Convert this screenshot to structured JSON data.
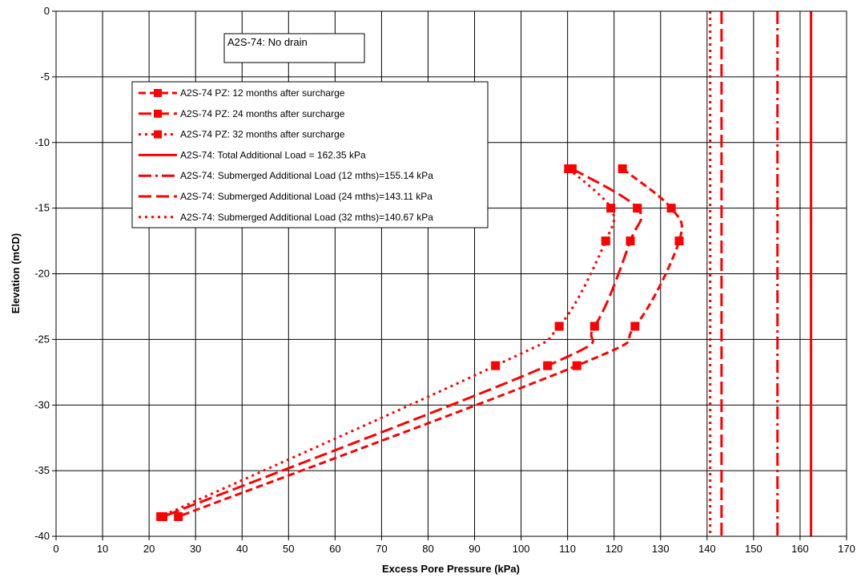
{
  "chart_data": {
    "type": "line",
    "title": "",
    "annotation": "A2S-74: No drain",
    "xlabel": "Excess Pore Pressure (kPa)",
    "ylabel": "Elevation (mCD)",
    "xlim": [
      0,
      170
    ],
    "ylim": [
      -40,
      0
    ],
    "xticks": [
      "0",
      "10",
      "20",
      "30",
      "40",
      "50",
      "60",
      "70",
      "80",
      "90",
      "100",
      "110",
      "120",
      "130",
      "140",
      "150",
      "160",
      "170"
    ],
    "yticks": [
      "0",
      "-5",
      "-10",
      "-15",
      "-20",
      "-25",
      "-30",
      "-35",
      "-40"
    ],
    "grid": true,
    "legend_position": "top-left",
    "color": "#ff0000",
    "series": [
      {
        "name": "A2S-74 PZ: 12 months after surcharge",
        "style": "short-dash",
        "markers": true,
        "points": [
          [
            121.8,
            -12
          ],
          [
            132.3,
            -15
          ],
          [
            134,
            -17.5
          ],
          [
            124.5,
            -24
          ],
          [
            112,
            -27
          ],
          [
            26.3,
            -38.5
          ]
        ]
      },
      {
        "name": "A2S-74 PZ: 24 months after surcharge",
        "style": "long-dash",
        "markers": true,
        "points": [
          [
            111,
            -12
          ],
          [
            125,
            -15
          ],
          [
            123.5,
            -17.5
          ],
          [
            115.8,
            -24
          ],
          [
            105.7,
            -27
          ],
          [
            23,
            -38.5
          ]
        ]
      },
      {
        "name": "A2S-74 PZ: 32 months after surcharge",
        "style": "dot",
        "markers": true,
        "points": [
          [
            110.2,
            -12
          ],
          [
            119.3,
            -15
          ],
          [
            118.2,
            -17.5
          ],
          [
            108.2,
            -24
          ],
          [
            94.5,
            -27
          ],
          [
            22.5,
            -38.5
          ]
        ]
      },
      {
        "name": "A2S-74: Total Additional Load = 162.35 kPa",
        "style": "solid",
        "markers": false,
        "x": 162.35
      },
      {
        "name": "A2S-74: Submerged Additional Load (12 mths)=155.14 kPa",
        "style": "dash-dot",
        "markers": false,
        "x": 155.14
      },
      {
        "name": "A2S-74: Submerged Additional Load (24 mths)=143.11 kPa",
        "style": "long-dash",
        "markers": false,
        "x": 143.11
      },
      {
        "name": "A2S-74: Submerged Additional Load (32 mths)=140.67 kPa",
        "style": "dot",
        "markers": false,
        "x": 140.67
      }
    ]
  }
}
